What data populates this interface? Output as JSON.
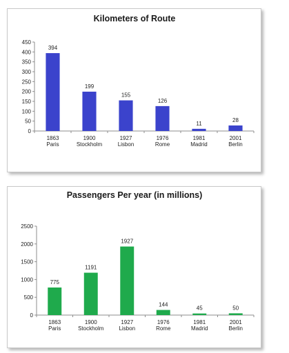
{
  "chart_data": [
    {
      "type": "bar",
      "title": "Kilometers of Route",
      "categories": [
        {
          "year": "1863",
          "city": "Paris"
        },
        {
          "year": "1900",
          "city": "Stockholm"
        },
        {
          "year": "1927",
          "city": "Lisbon"
        },
        {
          "year": "1976",
          "city": "Rome"
        },
        {
          "year": "1981",
          "city": "Madrid"
        },
        {
          "year": "2001",
          "city": "Berlin"
        }
      ],
      "values": [
        394,
        199,
        155,
        126,
        11,
        28
      ],
      "data_labels": [
        "394",
        "199",
        "155",
        "126",
        "11",
        "28"
      ],
      "yticks": [
        0,
        50,
        100,
        150,
        200,
        250,
        300,
        350,
        400,
        450
      ],
      "ylim": [
        0,
        450
      ],
      "grid": false,
      "legend": "none",
      "bar_color": "#3b43cc"
    },
    {
      "type": "bar",
      "title": "Passengers Per year (in millions)",
      "categories": [
        {
          "year": "1863",
          "city": "Paris"
        },
        {
          "year": "1900",
          "city": "Stockholm"
        },
        {
          "year": "1927",
          "city": "Lisbon"
        },
        {
          "year": "1976",
          "city": "Rome"
        },
        {
          "year": "1981",
          "city": "Madrid"
        },
        {
          "year": "2001",
          "city": "Berlin"
        }
      ],
      "values": [
        775,
        1191,
        1927,
        144,
        45,
        50
      ],
      "data_labels": [
        "775",
        "1191",
        "1927",
        "144",
        "45",
        "50"
      ],
      "yticks": [
        0,
        500,
        1000,
        1500,
        2000,
        2500
      ],
      "ylim": [
        0,
        2500
      ],
      "grid": false,
      "legend": "none",
      "bar_color": "#1faa4c"
    }
  ]
}
